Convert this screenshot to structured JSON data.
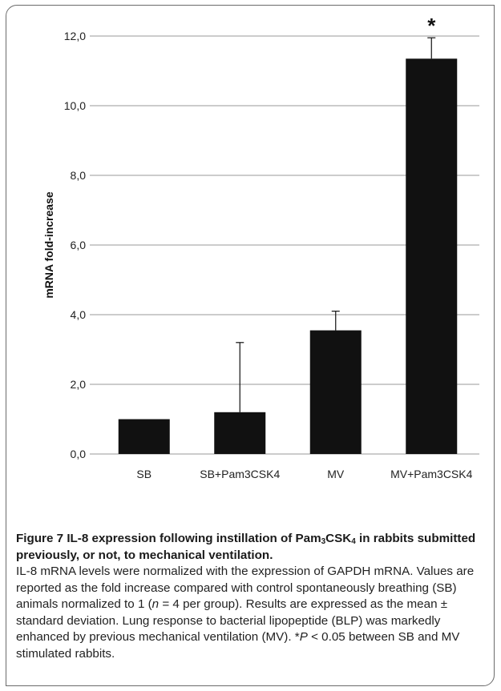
{
  "chart_data": {
    "type": "bar",
    "categories": [
      "SB",
      "SB+Pam3CSK4",
      "MV",
      "MV+Pam3CSK4"
    ],
    "values": [
      1.0,
      1.2,
      3.55,
      11.35
    ],
    "error_upper": [
      0.0,
      2.0,
      0.55,
      0.6
    ],
    "significance": [
      "",
      "",
      "",
      "*"
    ],
    "title": "",
    "xlabel": "",
    "ylabel": "mRNA fold-increase",
    "ylim": [
      0,
      12
    ],
    "yticks": [
      "0,0",
      "2,0",
      "4,0",
      "6,0",
      "8,0",
      "10,0",
      "12,0"
    ],
    "grid": true,
    "bar_color": "#111111",
    "grid_color": "#9a9a9a"
  },
  "caption": {
    "fig_label": "Figure 7",
    "title_prefix": "IL-8 expression following instillation of Pam",
    "title_sub1": "3",
    "title_mid": "CSK",
    "title_sub2": "4",
    "title_suffix": " in rabbits submitted previously, or not, to mechanical ventilation",
    "body_part1": "IL-8 mRNA levels were normalized with the expression of GAPDH mRNA. Values are reported as the fold increase compared with control spontaneously breathing (SB) animals normalized to 1 (",
    "body_n": "n",
    "body_part2": " = 4 per group). Results are expressed as the mean ± standard deviation. Lung response to bacterial lipopeptide (BLP) was markedly enhanced by previous mechanical ventilation (MV). *",
    "body_p": "P",
    "body_part3": " < 0.05 between SB and MV stimulated rabbits."
  }
}
